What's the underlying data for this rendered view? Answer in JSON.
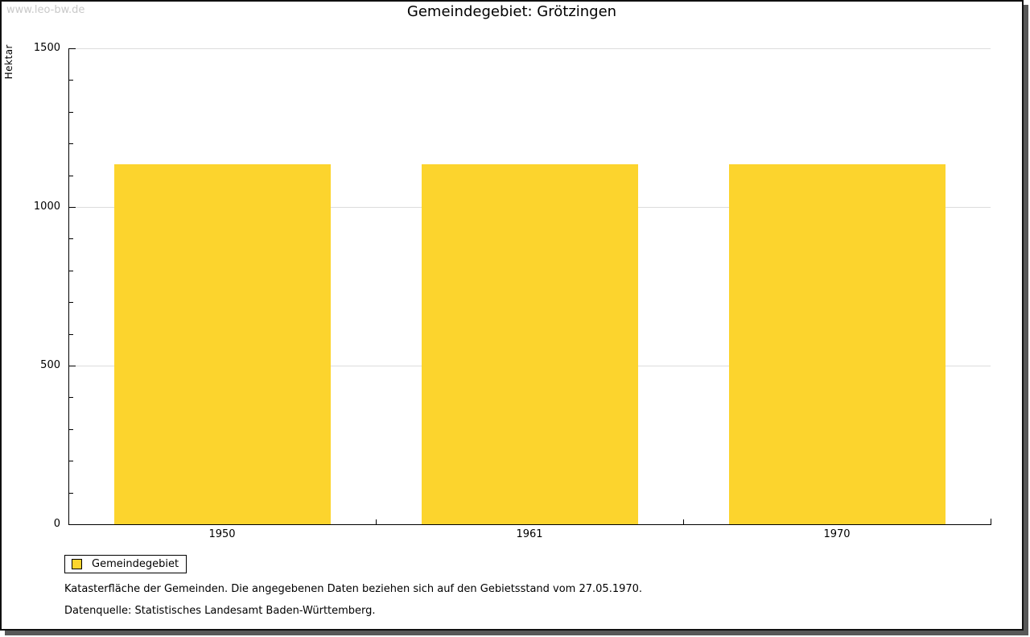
{
  "watermark": "www.leo-bw.de",
  "title": "Gemeindegebiet: Grötzingen",
  "chart_data": {
    "type": "bar",
    "title": "Gemeindegebiet: Grötzingen",
    "categories": [
      "1950",
      "1961",
      "1970"
    ],
    "series": [
      {
        "name": "Gemeindegebiet",
        "color": "#fcd42d",
        "values": [
          1134,
          1134,
          1134
        ]
      }
    ],
    "ylabel": "Hektar",
    "xlabel": "",
    "unit": "Hektar",
    "ylim": [
      0,
      1500
    ],
    "y_major_ticks": [
      0,
      500,
      1000,
      1500
    ],
    "y_minor_tick_step": 100,
    "grid": "horizontal-major",
    "gridline_color": "#dcdcdc",
    "axis_color": "#000000",
    "legend_position": "bottom-left"
  },
  "legend": {
    "items": [
      {
        "label": "Gemeindegebiet",
        "color": "#fcd42d"
      }
    ]
  },
  "footnotes": [
    "Katasterfläche der Gemeinden. Die angegebenen Daten beziehen sich auf den Gebietsstand vom 27.05.1970.",
    "Datenquelle: Statistisches Landesamt Baden-Württemberg."
  ]
}
